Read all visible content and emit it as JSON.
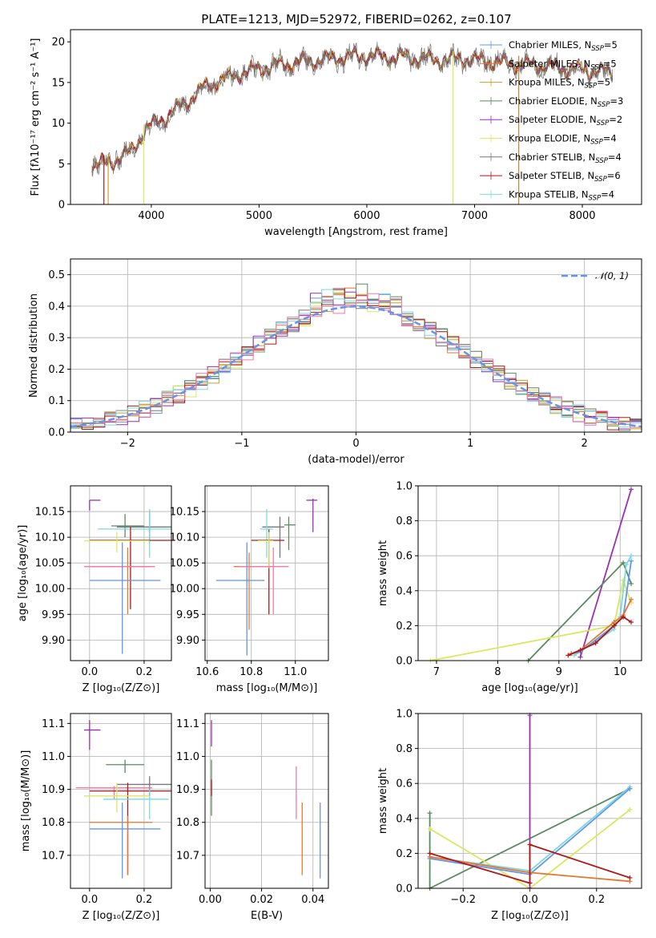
{
  "figure_title": "PLATE=1213, MJD=52972, FIBERID=0262, z=0.107",
  "colors": {
    "chabrier_miles": "#6495ed",
    "salpeter_miles": "#e3772b",
    "kroupa_miles": "#c8a030",
    "chabrier_elodie": "#5b8a5f",
    "salpeter_elodie": "#9a2fb4",
    "kroupa_elodie": "#d9e860",
    "chabrier_stelib": "#777777",
    "salpeter_stelib": "#b01818",
    "kroupa_stelib": "#7cd8df",
    "normal": "#6495ed",
    "pink": "#f07aa8"
  },
  "chart_data": [
    {
      "id": "spectrum",
      "type": "line",
      "title": "PLATE=1213, MJD=52972, FIBERID=0262, z=0.107",
      "xlabel": "wavelength [Angstrom, rest frame]",
      "ylabel": "Flux [fλ10⁻¹⁷ erg cm⁻² s⁻¹ A⁻¹]",
      "xlim": [
        3250,
        8550
      ],
      "ylim": [
        0,
        21.5
      ],
      "xticks": [
        4000,
        5000,
        6000,
        7000,
        8000
      ],
      "yticks": [
        0,
        5,
        10,
        15,
        20
      ],
      "legend_position": "top-right",
      "legend": [
        "Chabrier MILES, N_SSP=5",
        "Salpeter MILES, N_SSP=5",
        "Kroupa MILES, N_SSP=5",
        "Chabrier ELODIE, N_SSP=3",
        "Salpeter ELODIE, N_SSP=2",
        "Kroupa ELODIE, N_SSP=4",
        "Chabrier STELIB, N_SSP=4",
        "Salpeter STELIB, N_SSP=6",
        "Kroupa STELIB, N_SSP=4"
      ],
      "continuum": {
        "x": [
          3450,
          3600,
          3800,
          3950,
          4100,
          4300,
          4500,
          4800,
          5100,
          5400,
          5700,
          6000,
          6300,
          6600,
          6900,
          7200,
          7500,
          7800,
          8100,
          8280
        ],
        "y": [
          4.6,
          5.2,
          6.3,
          9.2,
          10.5,
          12.3,
          14.5,
          16.0,
          17.0,
          17.5,
          18.0,
          18.3,
          18.1,
          17.8,
          17.9,
          17.5,
          17.2,
          16.8,
          16.4,
          16.2
        ]
      },
      "spikes": [
        {
          "x": 3560,
          "color": "salpeter_stelib"
        },
        {
          "x": 3600,
          "color": "kroupa_miles"
        },
        {
          "x": 3930,
          "color": "kroupa_elodie"
        },
        {
          "x": 6800,
          "color": "kroupa_elodie"
        },
        {
          "x": 7410,
          "color": "salpeter_miles"
        }
      ]
    },
    {
      "id": "residuals",
      "type": "histogram",
      "xlabel": "(data-model)/error",
      "ylabel": "Normed distribution",
      "xlim": [
        -2.5,
        2.5
      ],
      "ylim": [
        0,
        0.55
      ],
      "xticks": [
        -2,
        -1,
        0,
        1,
        2
      ],
      "yticks": [
        0.0,
        0.1,
        0.2,
        0.3,
        0.4,
        0.5
      ],
      "legend_position": "top-right",
      "legend": [
        "𝒩(0, 1)"
      ],
      "bin_width": 0.1
    },
    {
      "id": "age_vs_Z",
      "type": "scatter",
      "xlabel": "Z [log₁₀(Z/Z⊙)]",
      "ylabel": "age  [log₁₀(age/yr)]",
      "xlim": [
        -0.07,
        0.3
      ],
      "ylim": [
        9.86,
        10.2
      ],
      "xticks": [
        0.0,
        0.2
      ],
      "yticks": [
        9.9,
        9.95,
        10.0,
        10.05,
        10.1,
        10.15
      ],
      "points": [
        {
          "c": "salpeter_elodie",
          "x": 0.0,
          "y": 10.172,
          "ex": [
            0.0,
            0.04
          ],
          "ey": [
            10.152,
            10.172
          ]
        },
        {
          "c": "chabrier_elodie",
          "x": 0.13,
          "y": 10.122,
          "ex": [
            0.08,
            0.2
          ],
          "ey": [
            10.1,
            10.145
          ]
        },
        {
          "c": "chabrier_stelib",
          "x": 0.22,
          "y": 10.12,
          "ex": [
            0.1,
            0.3
          ],
          "ey": [
            10.09,
            10.15
          ]
        },
        {
          "c": "kroupa_stelib",
          "x": 0.22,
          "y": 10.116,
          "ex": [
            0.03,
            0.3
          ],
          "ey": [
            10.06,
            10.155
          ]
        },
        {
          "c": "salpeter_stelib",
          "x": 0.15,
          "y": 10.094,
          "ex": [
            0.0,
            0.3
          ],
          "ey": [
            9.96,
            10.12
          ]
        },
        {
          "c": "kroupa_elodie",
          "x": 0.1,
          "y": 10.093,
          "ex": [
            -0.02,
            0.22
          ],
          "ey": [
            10.07,
            10.11
          ]
        },
        {
          "c": "salpeter_miles",
          "x": 0.14,
          "y": 10.043,
          "ex": [
            0.0,
            0.22
          ],
          "ey": [
            9.95,
            10.08
          ]
        },
        {
          "c": "pink",
          "x": 0.12,
          "y": 10.043,
          "ex": [
            -0.02,
            0.24
          ],
          "ey": [
            10.04,
            10.045
          ]
        },
        {
          "c": "chabrier_miles",
          "x": 0.12,
          "y": 10.016,
          "ex": [
            0.0,
            0.26
          ],
          "ey": [
            9.873,
            10.09
          ]
        }
      ]
    },
    {
      "id": "age_vs_mass",
      "type": "scatter",
      "xlabel": "mass [log₁₀(M/M⊙)]",
      "ylabel": "",
      "xlim": [
        10.59,
        11.15
      ],
      "ylim": [
        9.86,
        10.2
      ],
      "xticks": [
        10.6,
        10.8,
        11.0
      ],
      "yticks": [
        9.9,
        9.95,
        10.0,
        10.05,
        10.1,
        10.15
      ],
      "points": [
        {
          "c": "salpeter_elodie",
          "x": 11.08,
          "y": 10.172,
          "ex": [
            11.05,
            11.1
          ],
          "ey": [
            10.11,
            10.175
          ]
        },
        {
          "c": "chabrier_elodie",
          "x": 10.97,
          "y": 10.124,
          "ex": [
            10.95,
            11.0
          ],
          "ey": [
            10.075,
            10.14
          ]
        },
        {
          "c": "chabrier_stelib",
          "x": 10.93,
          "y": 10.12,
          "ex": [
            10.85,
            10.95
          ],
          "ey": [
            10.06,
            10.14
          ]
        },
        {
          "c": "kroupa_stelib",
          "x": 10.87,
          "y": 10.116,
          "ex": [
            10.84,
            10.9
          ],
          "ey": [
            10.06,
            10.155
          ]
        },
        {
          "c": "salpeter_stelib",
          "x": 10.88,
          "y": 10.094,
          "ex": [
            10.8,
            10.95
          ],
          "ey": [
            9.95,
            10.115
          ]
        },
        {
          "c": "kroupa_elodie",
          "x": 10.88,
          "y": 10.093,
          "ex": [
            10.83,
            10.9
          ],
          "ey": [
            10.04,
            10.11
          ]
        },
        {
          "c": "salpeter_miles",
          "x": 10.79,
          "y": 10.043,
          "ex": [
            10.72,
            10.89
          ],
          "ey": [
            9.92,
            10.07
          ]
        },
        {
          "c": "pink",
          "x": 10.9,
          "y": 10.043,
          "ex": [
            10.74,
            10.97
          ],
          "ey": [
            9.95,
            10.08
          ]
        },
        {
          "c": "chabrier_miles",
          "x": 10.78,
          "y": 10.016,
          "ex": [
            10.64,
            10.86
          ],
          "ey": [
            9.87,
            10.09
          ]
        }
      ]
    },
    {
      "id": "weight_vs_age",
      "type": "line",
      "xlabel": "age  [log₁₀(age/yr)]",
      "ylabel": "mass weight",
      "xlim": [
        6.7,
        10.35
      ],
      "ylim": [
        0,
        1
      ],
      "xticks": [
        7,
        8,
        9,
        10
      ],
      "yticks": [
        0.0,
        0.2,
        0.4,
        0.6,
        0.8,
        1.0
      ],
      "series": [
        {
          "c": "salpeter_elodie",
          "x": [
            9.35,
            10.18
          ],
          "y": [
            0.02,
            0.98
          ]
        },
        {
          "c": "chabrier_elodie",
          "x": [
            8.5,
            10.05,
            10.18
          ],
          "y": [
            0.0,
            0.56,
            0.44
          ]
        },
        {
          "c": "kroupa_elodie",
          "x": [
            6.9,
            9.9,
            10.05,
            10.18
          ],
          "y": [
            0.0,
            0.2,
            0.46,
            0.33
          ]
        },
        {
          "c": "kroupa_stelib",
          "x": [
            9.25,
            9.9,
            10.0,
            10.1,
            10.18
          ],
          "y": [
            0.03,
            0.18,
            0.25,
            0.55,
            0.6
          ]
        },
        {
          "c": "chabrier_miles",
          "x": [
            9.2,
            9.35,
            9.9,
            10.05,
            10.18
          ],
          "y": [
            0.04,
            0.05,
            0.2,
            0.25,
            0.57
          ]
        },
        {
          "c": "salpeter_miles",
          "x": [
            9.2,
            9.35,
            9.9,
            10.05,
            10.18
          ],
          "y": [
            0.04,
            0.06,
            0.22,
            0.26,
            0.35
          ]
        },
        {
          "c": "salpeter_stelib",
          "x": [
            9.15,
            9.35,
            9.6,
            9.9,
            10.05,
            10.18
          ],
          "y": [
            0.03,
            0.06,
            0.1,
            0.2,
            0.25,
            0.22
          ]
        }
      ]
    },
    {
      "id": "mass_vs_Z",
      "type": "scatter",
      "xlabel": "Z [log₁₀(Z/Z⊙)]",
      "ylabel": "mass [log₁₀(M/M⊙)]",
      "xlim": [
        -0.07,
        0.3
      ],
      "ylim": [
        10.6,
        11.13
      ],
      "xticks": [
        0.0,
        0.2
      ],
      "yticks": [
        10.7,
        10.8,
        10.9,
        11.0,
        11.1
      ],
      "points": [
        {
          "c": "salpeter_elodie",
          "x": 0.0,
          "y": 11.08,
          "ex": [
            -0.02,
            0.04
          ],
          "ey": [
            11.02,
            11.11
          ]
        },
        {
          "c": "chabrier_elodie",
          "x": 0.13,
          "y": 10.975,
          "ex": [
            0.06,
            0.2
          ],
          "ey": [
            10.95,
            10.99
          ]
        },
        {
          "c": "chabrier_stelib",
          "x": 0.22,
          "y": 10.915,
          "ex": [
            0.1,
            0.3
          ],
          "ey": [
            10.88,
            10.94
          ]
        },
        {
          "c": "pink",
          "x": 0.09,
          "y": 10.905,
          "ex": [
            -0.05,
            0.23
          ],
          "ey": [
            10.87,
            10.91
          ]
        },
        {
          "c": "salpeter_stelib",
          "x": 0.14,
          "y": 10.895,
          "ex": [
            0.0,
            0.3
          ],
          "ey": [
            10.64,
            10.92
          ]
        },
        {
          "c": "kroupa_elodie",
          "x": 0.1,
          "y": 10.88,
          "ex": [
            -0.02,
            0.22
          ],
          "ey": [
            10.83,
            10.92
          ]
        },
        {
          "c": "kroupa_stelib",
          "x": 0.22,
          "y": 10.87,
          "ex": [
            0.05,
            0.29
          ],
          "ey": [
            10.81,
            10.9
          ]
        },
        {
          "c": "salpeter_miles",
          "x": 0.14,
          "y": 10.8,
          "ex": [
            0.0,
            0.23
          ],
          "ey": [
            10.64,
            10.82
          ]
        },
        {
          "c": "chabrier_miles",
          "x": 0.12,
          "y": 10.78,
          "ex": [
            0.0,
            0.26
          ],
          "ey": [
            10.63,
            10.86
          ]
        }
      ]
    },
    {
      "id": "mass_vs_ebv",
      "type": "scatter",
      "xlabel": "E(B-V)",
      "ylabel": "",
      "xlim": [
        -0.002,
        0.046
      ],
      "ylim": [
        10.6,
        11.13
      ],
      "xticks": [
        0.0,
        0.02,
        0.04
      ],
      "yticks": [
        10.7,
        10.8,
        10.9,
        11.0,
        11.1
      ],
      "points": [
        {
          "c": "salpeter_elodie",
          "x": 0.0005,
          "y": 11.08,
          "ex": [
            0.0005,
            0.0005
          ],
          "ey": [
            11.03,
            11.11
          ]
        },
        {
          "c": "chabrier_elodie",
          "x": 0.0005,
          "y": 10.95,
          "ex": [
            0.0005,
            0.0005
          ],
          "ey": [
            10.82,
            10.99
          ]
        },
        {
          "c": "salpeter_stelib",
          "x": 0.0005,
          "y": 10.9,
          "ex": [
            0.0005,
            0.0005
          ],
          "ey": [
            10.88,
            10.93
          ]
        },
        {
          "c": "pink",
          "x": 0.0335,
          "y": 10.9,
          "ex": [
            0.0335,
            0.0335
          ],
          "ey": [
            10.81,
            10.97
          ]
        },
        {
          "c": "salpeter_miles",
          "x": 0.0358,
          "y": 10.8,
          "ex": [
            0.0358,
            0.0358
          ],
          "ey": [
            10.64,
            10.86
          ]
        },
        {
          "c": "chabrier_miles",
          "x": 0.0428,
          "y": 10.78,
          "ex": [
            0.0428,
            0.0428
          ],
          "ey": [
            10.63,
            10.86
          ]
        }
      ]
    },
    {
      "id": "weight_vs_Z",
      "type": "line",
      "xlabel": "Z [log₁₀(Z/Z⊙)]",
      "ylabel": "mass weight",
      "xlim": [
        -0.335,
        0.335
      ],
      "ylim": [
        0,
        1
      ],
      "xticks": [
        -0.2,
        0.0,
        0.2
      ],
      "yticks": [
        0.0,
        0.2,
        0.4,
        0.6,
        0.8,
        1.0
      ],
      "series": [
        {
          "c": "chabrier_elodie",
          "x": [
            -0.3,
            -0.3,
            0.3
          ],
          "y": [
            0.43,
            0.0,
            0.57
          ]
        },
        {
          "c": "kroupa_elodie",
          "x": [
            -0.3,
            0.0,
            0.3
          ],
          "y": [
            0.34,
            0.0,
            0.45
          ]
        },
        {
          "c": "salpeter_elodie",
          "x": [
            0.0,
            0.0
          ],
          "y": [
            0.0,
            0.99
          ]
        },
        {
          "c": "kroupa_stelib",
          "x": [
            -0.3,
            0.0,
            0.3
          ],
          "y": [
            0.18,
            0.1,
            0.58
          ]
        },
        {
          "c": "chabrier_miles",
          "x": [
            -0.3,
            0.0,
            0.3
          ],
          "y": [
            0.17,
            0.08,
            0.57
          ]
        },
        {
          "c": "salpeter_miles",
          "x": [
            -0.3,
            0.0,
            0.3
          ],
          "y": [
            0.18,
            0.09,
            0.04
          ]
        },
        {
          "c": "salpeter_stelib",
          "x": [
            -0.3,
            0.0,
            0.0,
            0.3
          ],
          "y": [
            0.2,
            0.03,
            0.25,
            0.06
          ]
        }
      ]
    }
  ]
}
